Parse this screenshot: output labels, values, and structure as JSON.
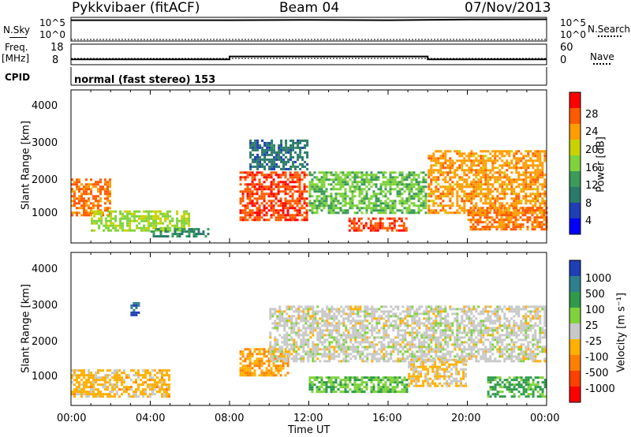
{
  "header": {
    "station": "Pykkvibaer (fitACF)",
    "beam": "Beam 04",
    "date": "07/Nov/2013"
  },
  "top_panels": {
    "nsky_label": "N.Sky",
    "nsky_ticks": [
      "10^5",
      "10^0"
    ],
    "nsearch_label": "N.Search",
    "nsearch_ticks": [
      "10^5",
      "10^0"
    ],
    "freq_label": "Freq.",
    "freq_unit": "[MHz]",
    "freq_ticks": [
      "18",
      "8"
    ],
    "nave_label": "Nave",
    "nave_ticks": [
      "60",
      "0"
    ],
    "cpid_label": "CPID",
    "cpid_text": "normal (fast stereo) 153"
  },
  "axes": {
    "xlabel": "Time UT",
    "x_ticks": [
      "00:00",
      "04:00",
      "08:00",
      "12:00",
      "16:00",
      "20:00",
      "00:00"
    ],
    "ylabel": "Slant Range [km]",
    "y_ticks": [
      "4000",
      "3000",
      "2000",
      "1000"
    ]
  },
  "colorbars": {
    "power": {
      "label": "Power [dB]",
      "ticks": [
        "28",
        "24",
        "20",
        "16",
        "12",
        "8",
        "4"
      ],
      "colors": [
        "#ff0000",
        "#ff5a00",
        "#ff9c00",
        "#c8d200",
        "#7fd23c",
        "#3c9a5a",
        "#2a7a6a",
        "#1f3fb4",
        "#0000ff"
      ]
    },
    "velocity": {
      "label": "Velocity [m s⁻¹]",
      "ticks": [
        "1000",
        "500",
        "100",
        "25",
        "-25",
        "-100",
        "-500",
        "-1000"
      ],
      "colors": [
        "#1f3fb4",
        "#2e7f8c",
        "#2e9a4a",
        "#7fd23c",
        "#c8c8c8",
        "#ffb000",
        "#ff8000",
        "#ff4000",
        "#ff0000"
      ]
    }
  },
  "chart_data": [
    {
      "type": "line",
      "title": "N.Sky / N.Search",
      "x": [
        "00:00",
        "04:00",
        "08:00",
        "12:00",
        "16:00",
        "20:00",
        "00:00"
      ],
      "series": [
        {
          "name": "N.Sky",
          "values": [
            50000,
            50000,
            50000,
            60000,
            50000,
            70000,
            80000
          ]
        },
        {
          "name": "N.Search",
          "values": [
            1,
            1,
            1,
            1,
            1,
            1,
            1
          ]
        }
      ]
    },
    {
      "type": "line",
      "title": "Freq. / Nave",
      "x": [
        "00:00",
        "04:00",
        "08:00",
        "12:00",
        "16:00",
        "18:00",
        "20:00",
        "00:00"
      ],
      "series": [
        {
          "name": "Freq. [MHz]",
          "values": [
            10.2,
            10.2,
            11.8,
            11.8,
            11.8,
            10.2,
            10.2,
            10.2
          ]
        },
        {
          "name": "Nave",
          "values": [
            16,
            16,
            16,
            16,
            16,
            16,
            16,
            16
          ]
        }
      ],
      "ylim_freq": [
        8,
        18
      ],
      "ylim_nave": [
        0,
        60
      ]
    },
    {
      "type": "heatmap",
      "title": "Power [dB]",
      "xlim": [
        0,
        24
      ],
      "ylim": [
        180,
        4500
      ],
      "clim": [
        0,
        30
      ],
      "regions": [
        {
          "t0": 0.0,
          "t1": 2.0,
          "r0": 900,
          "r1": 2000,
          "value": 24
        },
        {
          "t0": 1.0,
          "t1": 6.0,
          "r0": 500,
          "r1": 1100,
          "value": 16
        },
        {
          "t0": 4.0,
          "t1": 7.0,
          "r0": 300,
          "r1": 600,
          "value": 10
        },
        {
          "t0": 8.5,
          "t1": 12.0,
          "r0": 800,
          "r1": 2200,
          "value": 26
        },
        {
          "t0": 9.0,
          "t1": 12.0,
          "r0": 2200,
          "r1": 3100,
          "value": 8
        },
        {
          "t0": 12.0,
          "t1": 18.0,
          "r0": 1000,
          "r1": 2200,
          "value": 14
        },
        {
          "t0": 14.0,
          "t1": 17.0,
          "r0": 500,
          "r1": 900,
          "value": 26
        },
        {
          "t0": 18.0,
          "t1": 24.0,
          "r0": 1000,
          "r1": 2800,
          "value": 22
        },
        {
          "t0": 20.0,
          "t1": 24.0,
          "r0": 500,
          "r1": 1200,
          "value": 24
        }
      ]
    },
    {
      "type": "heatmap",
      "title": "Velocity [m s-1]",
      "xlim": [
        0,
        24
      ],
      "ylim": [
        180,
        4500
      ],
      "clim": [
        -1000,
        1000
      ],
      "regions": [
        {
          "t0": 0.0,
          "t1": 5.0,
          "r0": 400,
          "r1": 1200,
          "value": -200
        },
        {
          "t0": 3.0,
          "t1": 3.5,
          "r0": 2700,
          "r1": 3100,
          "value": 800
        },
        {
          "t0": 8.5,
          "t1": 11.0,
          "r0": 1000,
          "r1": 1800,
          "value": -300
        },
        {
          "t0": 10.0,
          "t1": 24.0,
          "r0": 1400,
          "r1": 3000,
          "value": 0
        },
        {
          "t0": 12.0,
          "t1": 17.0,
          "r0": 500,
          "r1": 1000,
          "value": 300
        },
        {
          "t0": 17.0,
          "t1": 20.0,
          "r0": 700,
          "r1": 1500,
          "value": -150
        },
        {
          "t0": 21.0,
          "t1": 24.0,
          "r0": 400,
          "r1": 1000,
          "value": 400
        }
      ]
    }
  ]
}
